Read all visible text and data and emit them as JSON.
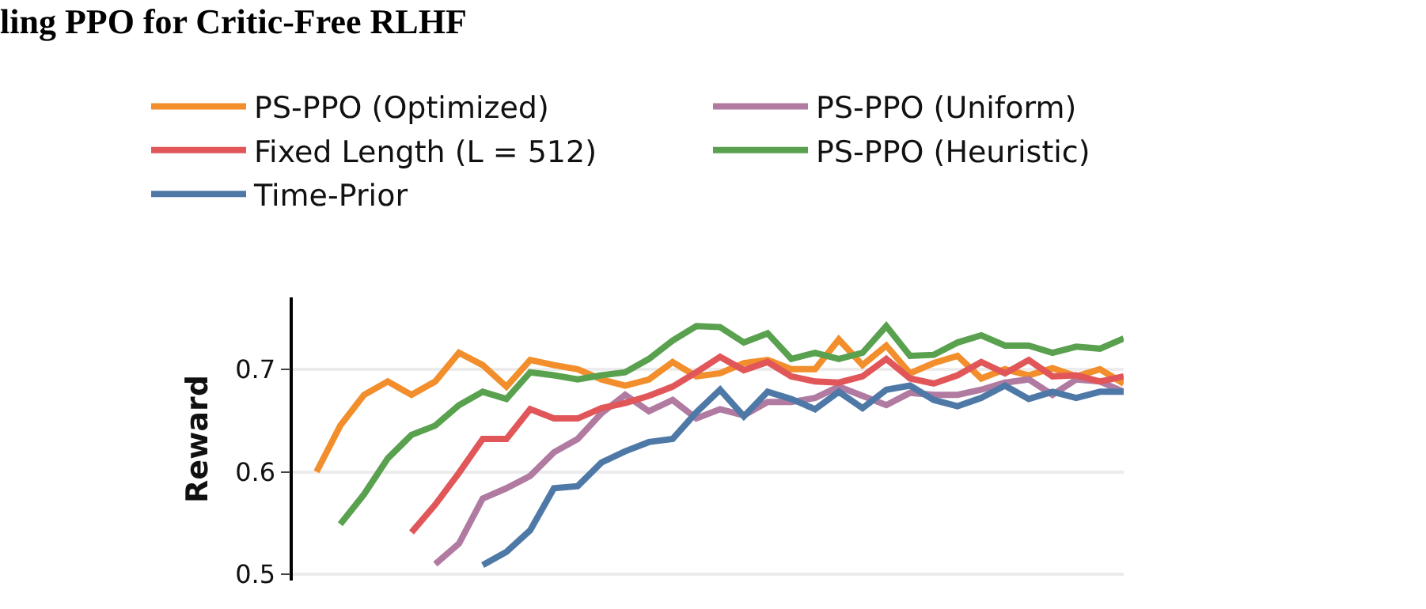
{
  "chart_data": {
    "type": "line",
    "title": "ling PPO for Critic-Free RLHF",
    "ylabel": "Reward",
    "categories": [
      null,
      null,
      null,
      null,
      null,
      null,
      null,
      null,
      null,
      null,
      null,
      null,
      null,
      null,
      null,
      null,
      null,
      null,
      null,
      null,
      null,
      null,
      null,
      null,
      null,
      null,
      null,
      null,
      null,
      null,
      null,
      null,
      null,
      null,
      null,
      null
    ],
    "series": [
      {
        "name": "PS-PPO (Optimized)",
        "color": "#f28e2b",
        "values": [
          null,
          0.6,
          0.645,
          0.675,
          0.688,
          0.675,
          0.688,
          0.716,
          0.704,
          0.683,
          0.709,
          0.704,
          0.7,
          0.69,
          0.684,
          0.69,
          0.707,
          0.693,
          0.696,
          0.706,
          0.709,
          0.7,
          0.7,
          0.729,
          0.704,
          0.723,
          0.696,
          0.706,
          0.713,
          0.691,
          0.7,
          0.694,
          0.701,
          0.693,
          0.7,
          0.686
        ]
      },
      {
        "name": "PS-PPO (Uniform)",
        "color": "#b07aa1",
        "values": [
          null,
          null,
          null,
          null,
          null,
          null,
          0.51,
          0.53,
          0.574,
          0.584,
          0.596,
          0.619,
          0.632,
          0.657,
          0.675,
          0.659,
          0.67,
          0.652,
          0.661,
          0.655,
          0.668,
          0.668,
          0.672,
          0.683,
          0.674,
          0.665,
          0.677,
          0.675,
          0.675,
          0.68,
          0.687,
          0.69,
          0.675,
          0.69,
          0.688,
          0.678
        ]
      },
      {
        "name": "Fixed Length (L = 512)",
        "color": "#e15759",
        "values": [
          null,
          null,
          null,
          null,
          null,
          0.541,
          0.568,
          0.599,
          0.632,
          0.632,
          0.661,
          0.652,
          0.652,
          0.662,
          0.667,
          0.674,
          0.683,
          0.697,
          0.712,
          0.699,
          0.707,
          0.693,
          0.688,
          0.687,
          0.693,
          0.71,
          0.691,
          0.686,
          0.694,
          0.707,
          0.696,
          0.709,
          0.693,
          0.694,
          0.688,
          0.693
        ]
      },
      {
        "name": "PS-PPO (Heuristic)",
        "color": "#59a14f",
        "values": [
          null,
          null,
          0.549,
          0.578,
          0.613,
          0.636,
          0.645,
          0.665,
          0.678,
          0.671,
          0.697,
          0.694,
          0.69,
          0.694,
          0.697,
          0.71,
          0.728,
          0.742,
          0.741,
          0.726,
          0.735,
          0.71,
          0.716,
          0.71,
          0.716,
          0.742,
          0.713,
          0.714,
          0.726,
          0.733,
          0.723,
          0.723,
          0.716,
          0.722,
          0.72,
          0.73
        ]
      },
      {
        "name": "Time-Prior",
        "color": "#4e79a7",
        "values": [
          null,
          null,
          null,
          null,
          null,
          null,
          null,
          null,
          0.509,
          0.522,
          0.543,
          0.584,
          0.586,
          0.609,
          0.62,
          0.629,
          0.632,
          0.658,
          0.68,
          0.654,
          0.678,
          0.671,
          0.661,
          0.678,
          0.662,
          0.68,
          0.684,
          0.67,
          0.664,
          0.672,
          0.684,
          0.671,
          0.678,
          0.672,
          0.678,
          0.678
        ]
      }
    ],
    "ylim": [
      0.494,
      0.77
    ],
    "yticks": [
      0.5,
      0.6,
      0.7
    ],
    "grid": "y",
    "legend": "top",
    "tick_labels": "y",
    "marker": "none",
    "line_style": "solid"
  }
}
